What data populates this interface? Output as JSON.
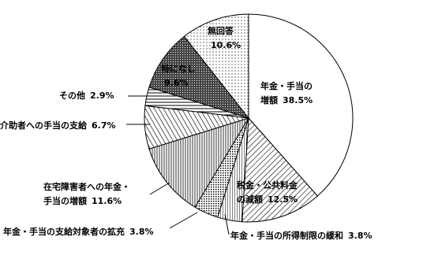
{
  "chart_data": {
    "type": "pie",
    "categories": [
      [
        "年金・手当の",
        "増額"
      ],
      [
        "税金・公共料金",
        "の減額"
      ],
      [
        "年金・手当の所得制限の緩和"
      ],
      [
        "年金・手当の支給対象者の拡充"
      ],
      [
        "在宅障害者への年金・",
        "手当の増額"
      ],
      [
        "介助者への手当の支給"
      ],
      [
        "その他"
      ],
      [
        "特になし"
      ],
      [
        "無回答"
      ]
    ],
    "values": [
      38.5,
      12.5,
      3.8,
      3.8,
      11.6,
      6.7,
      2.9,
      9.6,
      10.6
    ],
    "value_labels": [
      "38.5%",
      "12.5%",
      "3.8%",
      "3.8%",
      "11.6%",
      "6.7%",
      "2.9%",
      "9.6%",
      "10.6%"
    ]
  }
}
